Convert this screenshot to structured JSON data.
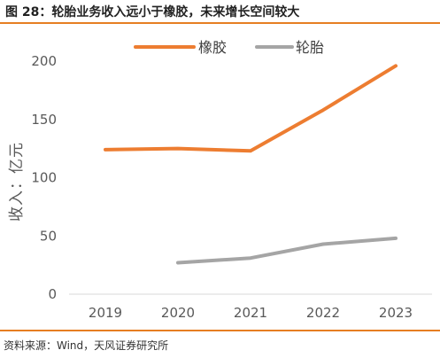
{
  "title": "图 28：轮胎业务收入远小于橡胶，未来增长空间较大",
  "source": "资料来源：Wind，天风证券研究所",
  "chart_data": {
    "type": "line",
    "x": [
      "2019",
      "2020",
      "2021",
      "2022",
      "2023"
    ],
    "ylabel": "收入：亿元",
    "ylim": [
      0,
      200
    ],
    "yticks": [
      "0",
      "50",
      "100",
      "150",
      "200"
    ],
    "grid": false,
    "legend_position": "top",
    "series": [
      {
        "name": "橡胶",
        "color": "#ed7d31",
        "values": [
          124,
          125,
          123,
          158,
          196
        ]
      },
      {
        "name": "轮胎",
        "color": "#a5a5a5",
        "values": [
          null,
          27,
          31,
          43,
          48
        ]
      }
    ]
  }
}
